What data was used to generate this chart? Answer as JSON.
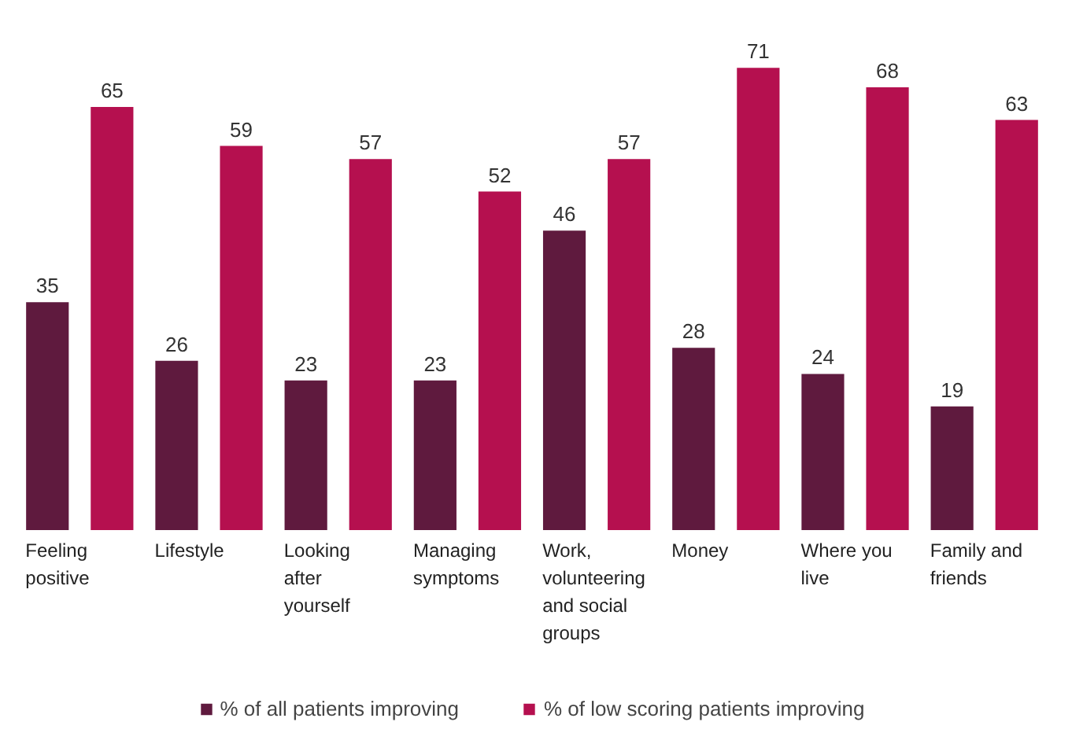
{
  "chart_data": {
    "type": "bar",
    "categories": [
      "Feeling positive",
      "Lifestyle",
      "Looking after yourself",
      "Managing symptoms",
      "Work, volunteering and social groups",
      "Money",
      "Where you live",
      "Family and friends"
    ],
    "series": [
      {
        "name": "% of all patients improving",
        "color": "#5f1a3e",
        "values": [
          35,
          26,
          23,
          23,
          46,
          28,
          24,
          19
        ]
      },
      {
        "name": "% of low scoring patients improving",
        "color": "#b5104f",
        "values": [
          65,
          59,
          57,
          52,
          57,
          71,
          68,
          63
        ]
      }
    ],
    "data_labels": true,
    "legend": "bottom"
  }
}
